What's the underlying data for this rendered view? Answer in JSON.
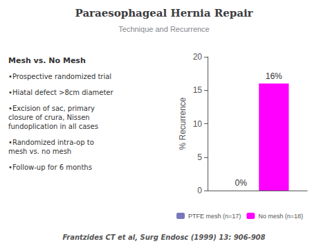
{
  "chart_data": {
    "type": "bar",
    "title": "Paraesophageal Hernia Repair",
    "subtitle": "Technique and Recurrence",
    "heading": "Mesh vs. No Mesh",
    "notes": [
      "•Prospective randomized trial",
      "•Hiatal defect >8cm diameter",
      "•Excision of sac, primary\nclosure of crura, Nissen\nfundoplication in all cases",
      "•Randomized intra-op to\nmesh vs. no mesh",
      "•Follow-up for 6 months"
    ],
    "citation": "Frantzides CT et al, Surg Endosc (1999) 13: 906-908",
    "ylabel": "% Recurrence",
    "categories": [
      null
    ],
    "series": [
      {
        "name": "PTFE mesh (n=17)",
        "color": "#7777bb",
        "values": [
          0
        ],
        "value_labels": [
          "0%"
        ]
      },
      {
        "name": "No mesh (n=18)",
        "color": "#FF00FF",
        "values": [
          16
        ],
        "value_labels": [
          "16%"
        ]
      }
    ],
    "ylim": [
      0,
      20
    ],
    "yticks": [
      0,
      5,
      10,
      15,
      20
    ],
    "data_labels": true,
    "tick_labels": "y",
    "grid": false,
    "legend": "bottom"
  }
}
